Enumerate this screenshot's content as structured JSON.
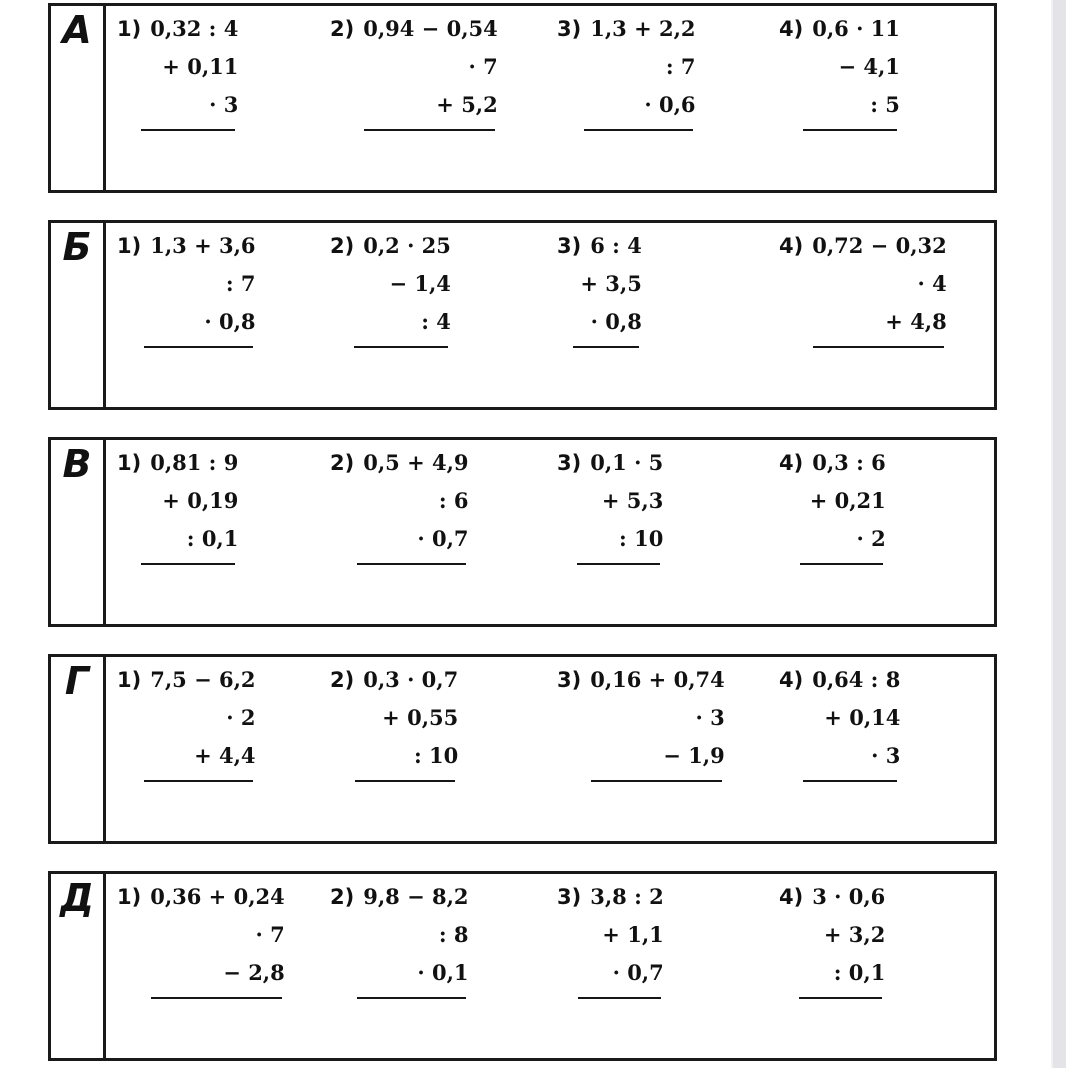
{
  "palette": {
    "paper": "#ffffff",
    "ink": "#111111",
    "box_border": "#1a1a1a",
    "scroll_strip": "#e3e3e8"
  },
  "worksheet": {
    "rows": [
      {
        "label": "А",
        "exercises": [
          {
            "num": "1)",
            "expr": "0,32 : 4",
            "op1": "+ 0,11",
            "op2": "· 3"
          },
          {
            "num": "2)",
            "expr": "0,94 − 0,54",
            "op1": "· 7",
            "op2": "+ 5,2"
          },
          {
            "num": "3)",
            "expr": "1,3 + 2,2",
            "op1": ": 7",
            "op2": "· 0,6"
          },
          {
            "num": "4)",
            "expr": "0,6 · 11",
            "op1": "− 4,1",
            "op2": ": 5"
          }
        ]
      },
      {
        "label": "Б",
        "exercises": [
          {
            "num": "1)",
            "expr": "1,3 + 3,6",
            "op1": ": 7",
            "op2": "· 0,8"
          },
          {
            "num": "2)",
            "expr": "0,2 · 25",
            "op1": "− 1,4",
            "op2": ": 4"
          },
          {
            "num": "3)",
            "expr": "6 : 4",
            "op1": "+ 3,5",
            "op2": "· 0,8"
          },
          {
            "num": "4)",
            "expr": "0,72 − 0,32",
            "op1": "· 4",
            "op2": "+ 4,8"
          }
        ]
      },
      {
        "label": "В",
        "exercises": [
          {
            "num": "1)",
            "expr": "0,81 : 9",
            "op1": "+ 0,19",
            "op2": ": 0,1"
          },
          {
            "num": "2)",
            "expr": "0,5 + 4,9",
            "op1": ": 6",
            "op2": "· 0,7"
          },
          {
            "num": "3)",
            "expr": "0,1 · 5",
            "op1": "+ 5,3",
            "op2": ": 10"
          },
          {
            "num": "4)",
            "expr": "0,3 : 6",
            "op1": "+ 0,21",
            "op2": "· 2"
          }
        ]
      },
      {
        "label": "Г",
        "exercises": [
          {
            "num": "1)",
            "expr": "7,5 − 6,2",
            "op1": "· 2",
            "op2": "+ 4,4"
          },
          {
            "num": "2)",
            "expr": "0,3 · 0,7",
            "op1": "+ 0,55",
            "op2": ": 10"
          },
          {
            "num": "3)",
            "expr": "0,16 + 0,74",
            "op1": "· 3",
            "op2": "− 1,9"
          },
          {
            "num": "4)",
            "expr": "0,64 : 8",
            "op1": "+ 0,14",
            "op2": "· 3"
          }
        ]
      },
      {
        "label": "Д",
        "exercises": [
          {
            "num": "1)",
            "expr": "0,36 + 0,24",
            "op1": "· 7",
            "op2": "− 2,8"
          },
          {
            "num": "2)",
            "expr": "9,8 − 8,2",
            "op1": ": 8",
            "op2": "· 0,1"
          },
          {
            "num": "3)",
            "expr": "3,8 : 2",
            "op1": "+ 1,1",
            "op2": "· 0,7"
          },
          {
            "num": "4)",
            "expr": "3 · 0,6",
            "op1": "+ 3,2",
            "op2": ": 0,1"
          }
        ]
      }
    ]
  }
}
